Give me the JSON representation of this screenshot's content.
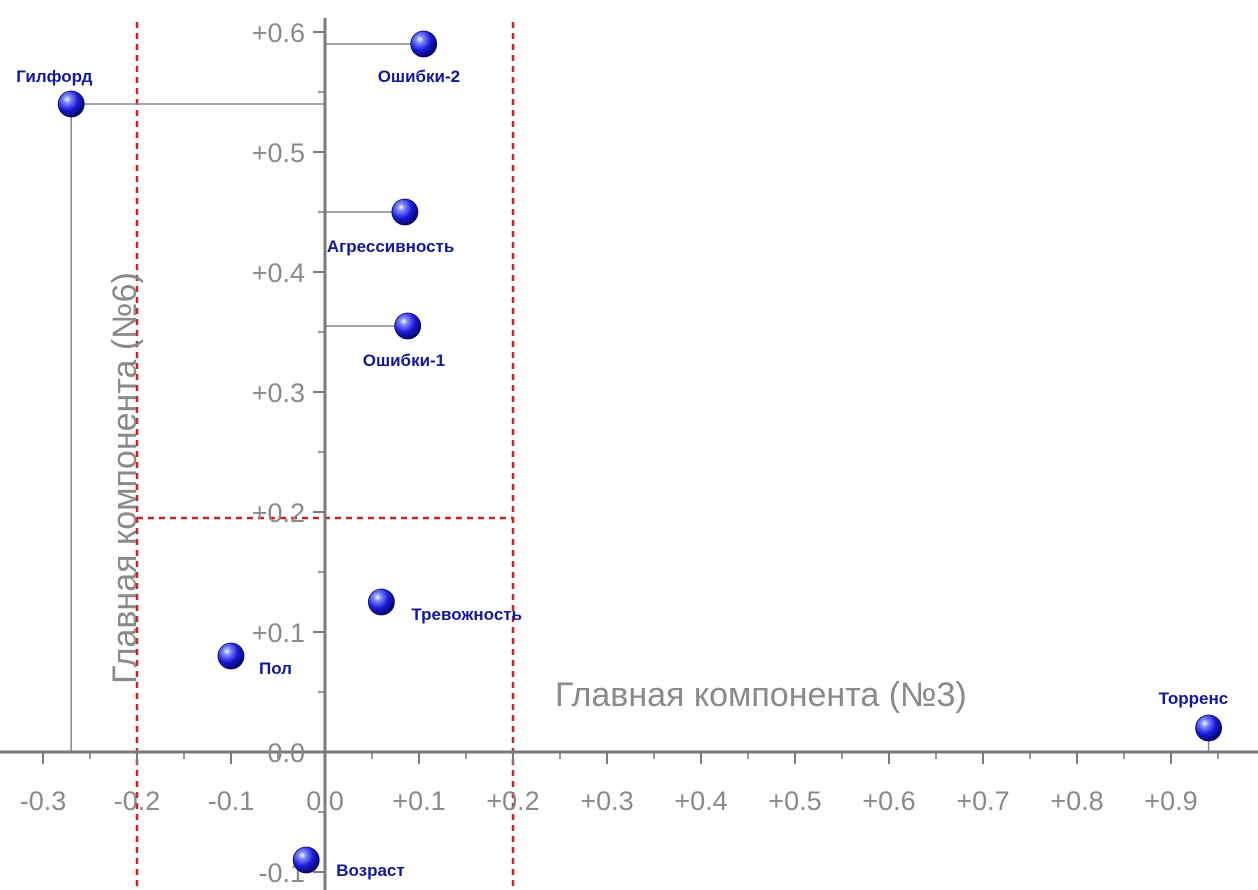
{
  "chart_data": {
    "type": "scatter",
    "xlabel": "Главная компонента (№3)",
    "ylabel": "Главная компонента (№6)",
    "xlim": [
      -0.33,
      0.99
    ],
    "ylim": [
      -0.11,
      0.62
    ],
    "x_ticks": [
      "-0.3",
      "-0.2",
      "-0.1",
      "0.0",
      "+0.1",
      "+0.2",
      "+0.3",
      "+0.4",
      "+0.5",
      "+0.6",
      "+0.7",
      "+0.8",
      "+0.9"
    ],
    "y_ticks": [
      "-0.1",
      "0.0",
      "+0.1",
      "+0.2",
      "+0.3",
      "+0.4",
      "+0.5",
      "+0.6"
    ],
    "points": [
      {
        "label": "Гилфорд",
        "x": -0.27,
        "y": 0.54
      },
      {
        "label": "Ошибки-2",
        "x": 0.105,
        "y": 0.59
      },
      {
        "label": "Агрессивность",
        "x": 0.085,
        "y": 0.45
      },
      {
        "label": "Ошибки-1",
        "x": 0.088,
        "y": 0.355
      },
      {
        "label": "Тревожность",
        "x": 0.06,
        "y": 0.125
      },
      {
        "label": "Пол",
        "x": -0.1,
        "y": 0.08
      },
      {
        "label": "Возраст",
        "x": -0.02,
        "y": -0.09
      },
      {
        "label": "Торренс",
        "x": 0.94,
        "y": 0.02
      }
    ],
    "threshold_lines": {
      "x": [
        -0.2,
        0.2
      ],
      "y": 0.195
    },
    "colors": {
      "point": "#1a1ad6",
      "label": "#12189a",
      "threshold": "#cc2222",
      "axis": "#7a7a7a"
    }
  }
}
